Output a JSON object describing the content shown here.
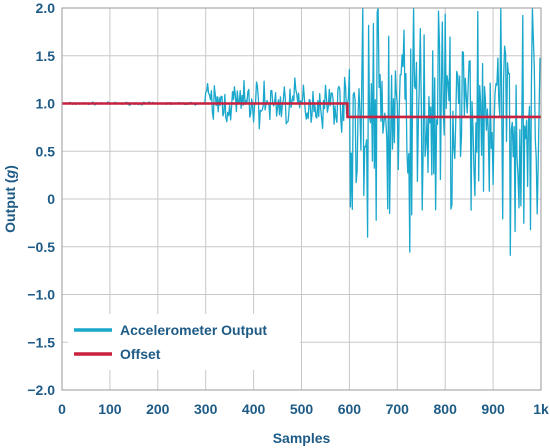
{
  "chart_data": {
    "type": "line",
    "xlabel": "Samples",
    "ylabel_prefix": "Output (",
    "ylabel_unit": "g",
    "ylabel_suffix": ")",
    "xlim": [
      0,
      1000
    ],
    "ylim": [
      -2.0,
      2.0
    ],
    "x_ticks": [
      0,
      100,
      200,
      300,
      400,
      500,
      600,
      700,
      800,
      900,
      1000
    ],
    "x_tick_labels": [
      "0",
      "100",
      "200",
      "300",
      "400",
      "500",
      "600",
      "700",
      "800",
      "900",
      "1k"
    ],
    "y_ticks": [
      2.0,
      1.5,
      1.0,
      0.5,
      0,
      -0.5,
      -1.0,
      -1.5,
      -2.0
    ],
    "y_tick_labels": [
      "2.0",
      "1.5",
      "1.0",
      "0.5",
      "0",
      "−0.5",
      "−1.0",
      "−1.5",
      "−2.0"
    ],
    "grid": true,
    "legend_position": "bottom-left",
    "series": [
      {
        "name": "Accelerometer Output",
        "color": "#1aa7cc",
        "segments": [
          {
            "x_start": 0,
            "x_end": 300,
            "mean": 1.0,
            "noise_amplitude": 0.02
          },
          {
            "x_start": 300,
            "x_end": 600,
            "mean": 1.0,
            "noise_amplitude": 0.35
          },
          {
            "x_start": 600,
            "x_end": 1000,
            "mean": 0.85,
            "noise_amplitude": 1.8
          }
        ],
        "y_clip": [
          -2.0,
          2.0
        ]
      },
      {
        "name": "Offset",
        "color": "#c8203f",
        "x": [
          0,
          596,
          596,
          1000
        ],
        "y": [
          1.0,
          1.0,
          0.86,
          0.86
        ]
      }
    ]
  }
}
